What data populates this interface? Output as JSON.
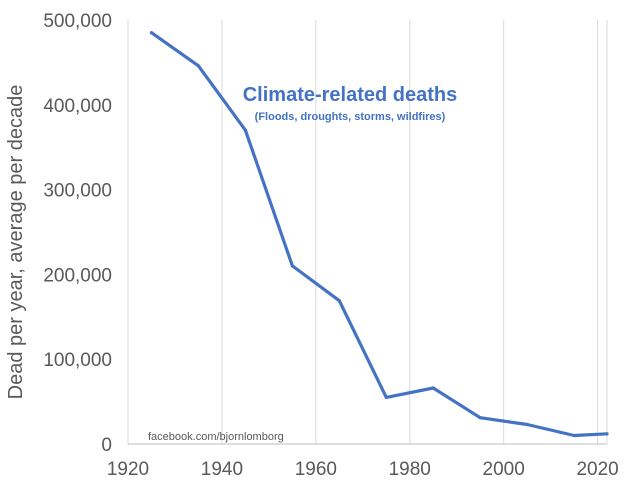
{
  "chart_data": {
    "type": "line",
    "title": "Climate-related deaths",
    "subtitle": "(Floods, droughts, storms, wildfires)",
    "source": "facebook.com/bjornlomborg",
    "xlabel": "",
    "ylabel": "Dead per year, average per decade",
    "xlim": [
      1920,
      2022
    ],
    "ylim": [
      0,
      500000
    ],
    "x_ticks": [
      1920,
      1940,
      1960,
      1980,
      2000,
      2020
    ],
    "x_tick_labels": [
      "1920",
      "1940",
      "1960",
      "1980",
      "2000",
      "2020"
    ],
    "y_ticks": [
      0,
      100000,
      200000,
      300000,
      400000,
      500000
    ],
    "y_tick_labels": [
      "0",
      "100,000",
      "200,000",
      "300,000",
      "400,000",
      "500,000"
    ],
    "grid": {
      "vertical": true,
      "horizontal": false
    },
    "line_color": "#4472c4",
    "title_color": "#4472c4",
    "series": [
      {
        "x": [
          1925,
          1935,
          1945,
          1955,
          1965,
          1975,
          1985,
          1995,
          2005,
          2015,
          2022
        ],
        "values": [
          485000,
          446000,
          370000,
          210000,
          169000,
          55000,
          66000,
          31000,
          23000,
          10000,
          12000
        ]
      }
    ]
  }
}
